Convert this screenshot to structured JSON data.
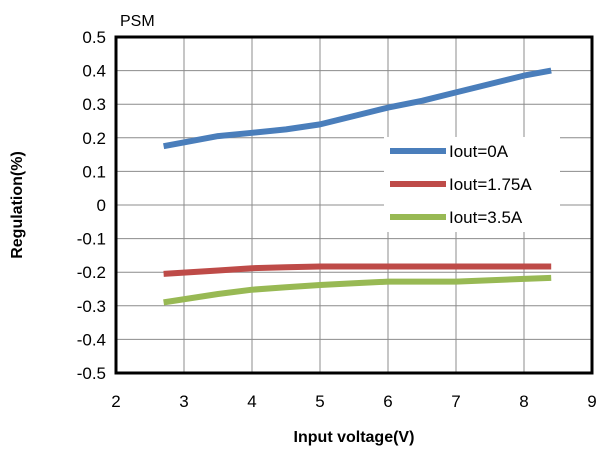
{
  "chart_data": {
    "type": "line",
    "title": "PSM",
    "xlabel": "Input voltage(V)",
    "ylabel": "Regulation(%)",
    "xlim": [
      2,
      9
    ],
    "ylim": [
      -0.5,
      0.5
    ],
    "xticks": [
      "2",
      "3",
      "4",
      "5",
      "6",
      "7",
      "8",
      "9"
    ],
    "yticks": [
      "0.5",
      "0.4",
      "0.3",
      "0.2",
      "0.1",
      "0",
      "-0.1",
      "-0.2",
      "-0.3",
      "-0.4",
      "-0.5"
    ],
    "grid": true,
    "legend_position": "right",
    "series": [
      {
        "name": "Iout=0A",
        "color": "#4a7ebb",
        "x": [
          2.7,
          3.5,
          4.0,
          4.5,
          5.0,
          5.5,
          6.0,
          6.5,
          7.0,
          7.5,
          8.0,
          8.4
        ],
        "y": [
          0.175,
          0.205,
          0.215,
          0.225,
          0.24,
          0.265,
          0.29,
          0.31,
          0.335,
          0.36,
          0.385,
          0.4
        ]
      },
      {
        "name": "Iout=1.75A",
        "color": "#be4b48",
        "x": [
          2.7,
          3.5,
          4.0,
          4.5,
          5.0,
          6.0,
          7.0,
          8.0,
          8.4
        ],
        "y": [
          -0.205,
          -0.195,
          -0.188,
          -0.185,
          -0.183,
          -0.183,
          -0.183,
          -0.183,
          -0.183
        ]
      },
      {
        "name": "Iout=3.5A",
        "color": "#98b954",
        "x": [
          2.7,
          3.5,
          4.0,
          4.5,
          5.0,
          5.5,
          6.0,
          7.0,
          8.0,
          8.4
        ],
        "y": [
          -0.29,
          -0.265,
          -0.252,
          -0.245,
          -0.238,
          -0.233,
          -0.228,
          -0.228,
          -0.22,
          -0.217
        ]
      }
    ]
  }
}
